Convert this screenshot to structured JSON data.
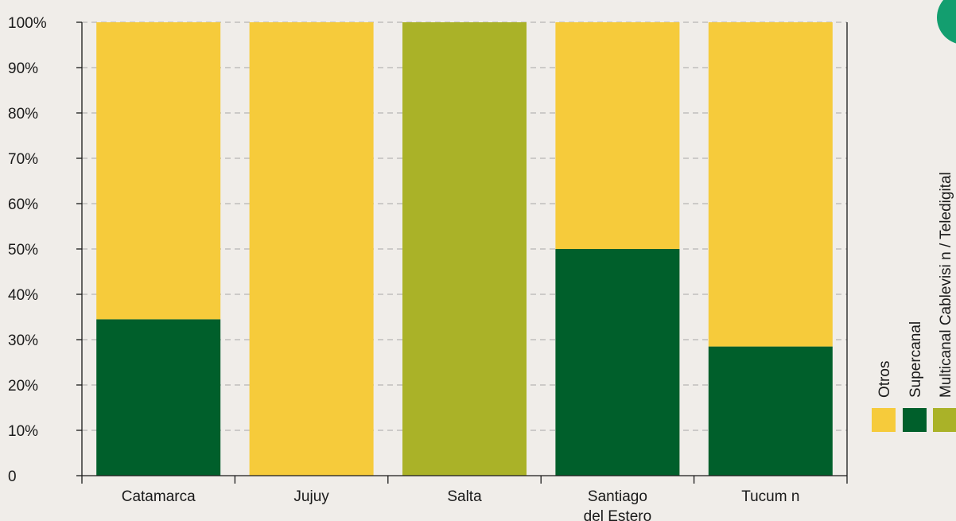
{
  "chart_data": {
    "type": "bar",
    "stacked": true,
    "categories": [
      "Catamarca",
      "Jujuy",
      "Salta",
      "Santiago\ndel Estero",
      "Tucum  n"
    ],
    "series": [
      {
        "name": "Multicanal Cablevisi  n / Teledigital",
        "color": "#aab228",
        "values": [
          0,
          0,
          100,
          0,
          0
        ]
      },
      {
        "name": "Supercanal",
        "color": "#005f2b",
        "values": [
          34.5,
          0,
          0,
          50,
          28.5
        ]
      },
      {
        "name": "Otros",
        "color": "#f6cb3b",
        "values": [
          65.5,
          100,
          0,
          50,
          71.5
        ]
      }
    ],
    "yticks": [
      "0",
      "10%",
      "20%",
      "30%",
      "40%",
      "50%",
      "60%",
      "70%",
      "80%",
      "90%",
      "100%"
    ],
    "ylim": [
      0,
      100
    ],
    "grid": true,
    "legend_position": "right"
  }
}
